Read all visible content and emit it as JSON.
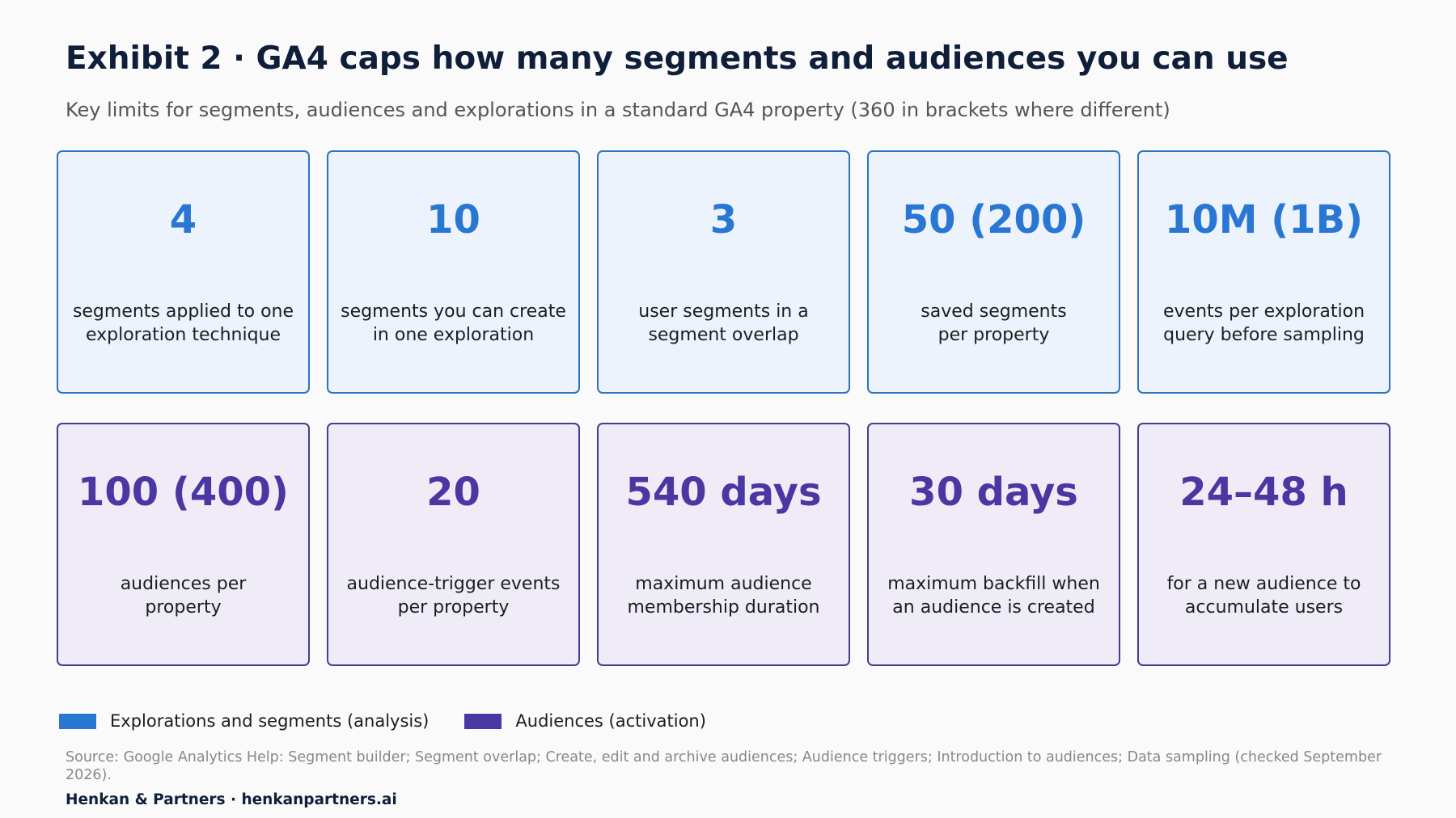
{
  "title": "Exhibit 2 · GA4 caps how many segments and audiences you can use",
  "subtitle": "Key limits for segments, audiences and explorations in a standard GA4 property (360 in brackets where different)",
  "colors": {
    "explorations": "#2a77d3",
    "audiences": "#4a37a1"
  },
  "explorations_cards": [
    {
      "value": "4",
      "label_lines": [
        "segments applied to one",
        "exploration technique"
      ]
    },
    {
      "value": "10",
      "label_lines": [
        "segments you can create",
        "in one exploration"
      ]
    },
    {
      "value": "3",
      "label_lines": [
        "user segments in a",
        "segment overlap"
      ]
    },
    {
      "value": "50 (200)",
      "label_lines": [
        "saved segments",
        "per property"
      ]
    },
    {
      "value": "10M (1B)",
      "label_lines": [
        "events per exploration",
        "query before sampling"
      ]
    }
  ],
  "audiences_cards": [
    {
      "value": "100 (400)",
      "label_lines": [
        "audiences per",
        "property"
      ]
    },
    {
      "value": "20",
      "label_lines": [
        "audience-trigger events",
        "per property"
      ]
    },
    {
      "value": "540 days",
      "label_lines": [
        "maximum audience",
        "membership duration"
      ]
    },
    {
      "value": "30 days",
      "label_lines": [
        "maximum backfill when",
        "an audience is created"
      ]
    },
    {
      "value": "24–48 h",
      "label_lines": [
        "for a new audience to",
        "accumulate users"
      ]
    }
  ],
  "legend": {
    "explorations": "Explorations and segments (analysis)",
    "audiences": "Audiences (activation)"
  },
  "source": "Source: Google Analytics Help: Segment builder; Segment overlap; Create, edit and archive audiences; Audience triggers; Introduction to audiences; Data sampling (checked September 2026).",
  "footer": "Henkan & Partners · henkanpartners.ai"
}
